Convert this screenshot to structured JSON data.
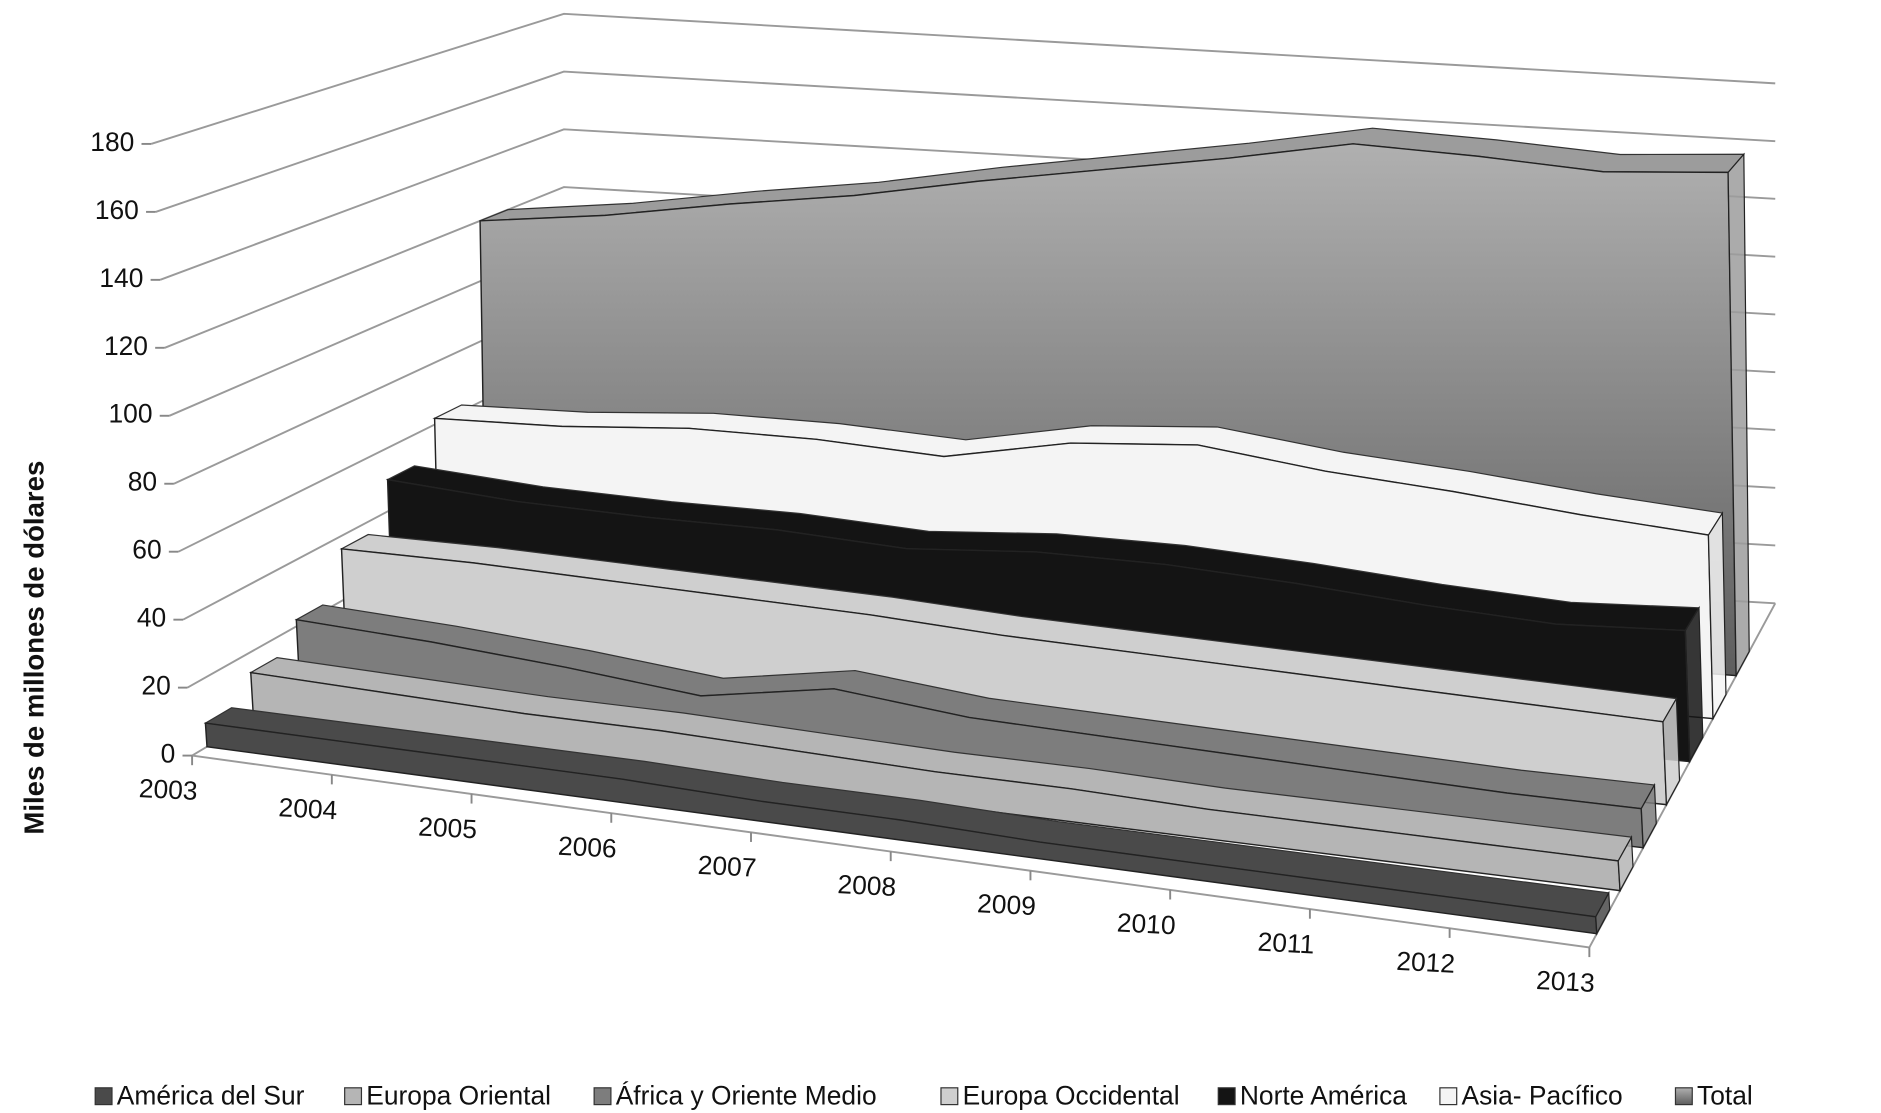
{
  "chart_data": {
    "type": "area3d",
    "y_label": "Miles de millones  de dólares",
    "categories": [
      "2003",
      "2004",
      "2005",
      "2006",
      "2007",
      "2008",
      "2009",
      "2010",
      "2011",
      "2012",
      "2013"
    ],
    "series": [
      {
        "name": "América del Sur",
        "color": "#4a4a4a",
        "values": [
          7,
          7,
          7,
          7,
          6,
          6,
          5,
          5,
          5,
          5,
          5
        ]
      },
      {
        "name": "Europa Oriental",
        "color": "#b5b5b5",
        "values": [
          14,
          13,
          12,
          12,
          11,
          10,
          10,
          9,
          9,
          9,
          9
        ]
      },
      {
        "name": "África y Oriente Medio",
        "color": "#7d7d7d",
        "values": [
          22,
          20,
          17,
          13,
          20,
          16,
          15,
          14,
          13,
          12,
          12
        ]
      },
      {
        "name": "Europa Occidental",
        "color": "#cfcfcf",
        "values": [
          36,
          36,
          35,
          34,
          33,
          31,
          30,
          29,
          28,
          27,
          26
        ]
      },
      {
        "name": "Norte América",
        "color": "#141414",
        "values": [
          50,
          47,
          46,
          46,
          44,
          47,
          47,
          45,
          42,
          40,
          42
        ]
      },
      {
        "name": "Asia- Pacífico",
        "color": "#f4f4f4",
        "values": [
          62,
          63,
          66,
          66,
          64,
          72,
          75,
          70,
          67,
          63,
          60
        ]
      },
      {
        "name": "Total",
        "color": "#9c9c9c",
        "values": [
          120,
          125,
          132,
          138,
          146,
          153,
          160,
          168,
          167,
          165,
          168
        ]
      }
    ],
    "ylim": [
      0,
      180
    ],
    "yticks": [
      0,
      20,
      40,
      60,
      80,
      100,
      120,
      140,
      160,
      180
    ],
    "grid": true
  }
}
